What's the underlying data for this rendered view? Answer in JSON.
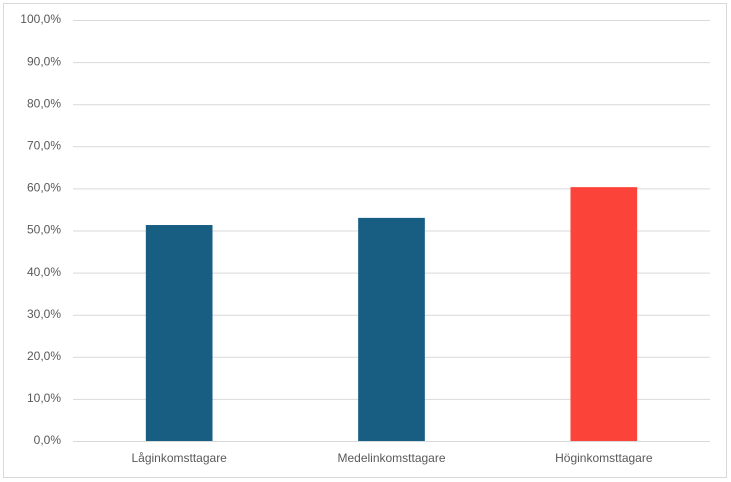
{
  "chart_data": {
    "type": "bar",
    "categories": [
      "Låginkomsttagare",
      "Medelinkomsttagare",
      "Höginkomsttagare"
    ],
    "values": [
      51.3,
      53.0,
      60.3
    ],
    "colors": [
      "#175e82",
      "#175e82",
      "#fc4339"
    ],
    "ylim": [
      0,
      100
    ],
    "yticks": [
      {
        "value": 0,
        "label": "0,0%"
      },
      {
        "value": 10,
        "label": "10,0%"
      },
      {
        "value": 20,
        "label": "20,0%"
      },
      {
        "value": 30,
        "label": "30,0%"
      },
      {
        "value": 40,
        "label": "40,0%"
      },
      {
        "value": 50,
        "label": "50,0%"
      },
      {
        "value": 60,
        "label": "60,0%"
      },
      {
        "value": 70,
        "label": "70,0%"
      },
      {
        "value": 80,
        "label": "80,0%"
      },
      {
        "value": 90,
        "label": "90,0%"
      },
      {
        "value": 100,
        "label": "100,0%"
      }
    ],
    "grid": true
  }
}
